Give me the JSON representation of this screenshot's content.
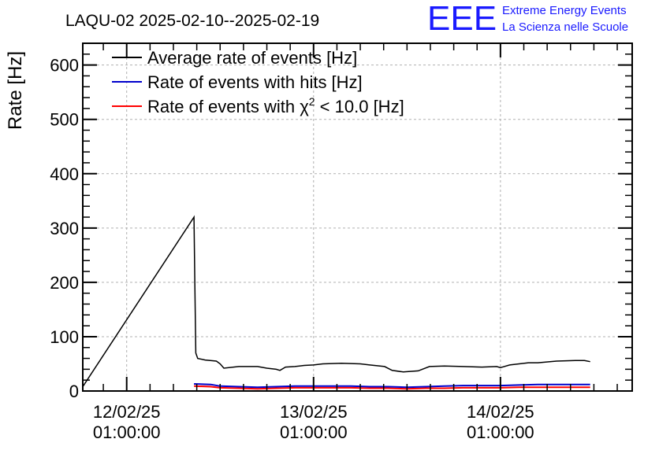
{
  "header": {
    "title": "LAQU-02 2025-02-10--2025-02-19",
    "logo_text": "EEE",
    "logo_line1": "Extreme Energy Events",
    "logo_line2": "La Scienza nelle Scuole",
    "logo_color": "#1a1aff"
  },
  "chart_data": {
    "type": "line",
    "ylabel": "Rate [Hz]",
    "xlabel": "",
    "ylim": [
      0,
      640
    ],
    "yticks": [
      0,
      100,
      200,
      300,
      400,
      500,
      600
    ],
    "xlim": [
      -0.235,
      2.705
    ],
    "xticks": [
      {
        "value": 0,
        "date": "12/02/25",
        "time": "01:00:00"
      },
      {
        "value": 1,
        "date": "13/02/25",
        "time": "01:00:00"
      },
      {
        "value": 2,
        "date": "14/02/25",
        "time": "01:00:00"
      }
    ],
    "grid": true,
    "legend": {
      "placement": "top-left",
      "entries": [
        {
          "label_pre": "Average rate of events [Hz]",
          "label_sup": "",
          "label_post": "",
          "color": "#000000"
        },
        {
          "label_pre": "Rate of events with hits [Hz]",
          "label_sup": "",
          "label_post": "",
          "color": "#0000cc"
        },
        {
          "label_pre": "Rate of events with χ",
          "label_sup": "2",
          "label_post": " < 10.0 [Hz]",
          "color": "#ff0000"
        }
      ]
    },
    "series": [
      {
        "name": "Average rate of events [Hz]",
        "color": "#000000",
        "points": [
          [
            -0.25,
            0
          ],
          [
            0.36,
            320
          ],
          [
            0.365,
            195
          ],
          [
            0.37,
            70
          ],
          [
            0.38,
            60
          ],
          [
            0.42,
            57
          ],
          [
            0.48,
            55
          ],
          [
            0.5,
            50
          ],
          [
            0.52,
            42
          ],
          [
            0.6,
            45
          ],
          [
            0.7,
            45
          ],
          [
            0.75,
            42
          ],
          [
            0.8,
            40
          ],
          [
            0.82,
            38
          ],
          [
            0.85,
            44
          ],
          [
            0.9,
            45
          ],
          [
            0.95,
            47
          ],
          [
            1.0,
            48
          ],
          [
            1.05,
            50
          ],
          [
            1.15,
            51
          ],
          [
            1.25,
            50
          ],
          [
            1.3,
            48
          ],
          [
            1.38,
            45
          ],
          [
            1.42,
            38
          ],
          [
            1.48,
            35
          ],
          [
            1.56,
            37
          ],
          [
            1.62,
            45
          ],
          [
            1.7,
            46
          ],
          [
            1.8,
            45
          ],
          [
            1.9,
            44
          ],
          [
            1.98,
            45
          ],
          [
            2.0,
            43
          ],
          [
            2.05,
            48
          ],
          [
            2.1,
            50
          ],
          [
            2.15,
            52
          ],
          [
            2.2,
            52
          ],
          [
            2.3,
            55
          ],
          [
            2.4,
            56
          ],
          [
            2.45,
            56
          ],
          [
            2.48,
            54
          ]
        ]
      },
      {
        "name": "Rate of events with hits [Hz]",
        "color": "#0000cc",
        "points": [
          [
            0.36,
            13
          ],
          [
            0.45,
            12
          ],
          [
            0.5,
            9
          ],
          [
            0.6,
            8
          ],
          [
            0.7,
            7
          ],
          [
            0.8,
            8
          ],
          [
            0.9,
            9
          ],
          [
            1.0,
            9
          ],
          [
            1.1,
            9
          ],
          [
            1.2,
            9
          ],
          [
            1.3,
            8
          ],
          [
            1.4,
            8
          ],
          [
            1.5,
            7
          ],
          [
            1.6,
            8
          ],
          [
            1.7,
            9
          ],
          [
            1.8,
            10
          ],
          [
            1.9,
            10
          ],
          [
            2.0,
            10
          ],
          [
            2.1,
            11
          ],
          [
            2.2,
            12
          ],
          [
            2.3,
            12
          ],
          [
            2.4,
            12
          ],
          [
            2.48,
            12
          ]
        ]
      },
      {
        "name": "Rate of events with χ2 < 10.0 [Hz]",
        "color": "#ff0000",
        "points": [
          [
            0.36,
            9
          ],
          [
            0.45,
            8
          ],
          [
            0.5,
            6
          ],
          [
            0.6,
            5
          ],
          [
            0.7,
            4
          ],
          [
            0.8,
            5
          ],
          [
            0.9,
            6
          ],
          [
            1.0,
            6
          ],
          [
            1.1,
            6
          ],
          [
            1.2,
            6
          ],
          [
            1.3,
            5
          ],
          [
            1.4,
            5
          ],
          [
            1.5,
            4
          ],
          [
            1.6,
            5
          ],
          [
            1.7,
            5
          ],
          [
            1.8,
            6
          ],
          [
            1.9,
            6
          ],
          [
            2.0,
            6
          ],
          [
            2.1,
            7
          ],
          [
            2.2,
            7
          ],
          [
            2.3,
            7
          ],
          [
            2.4,
            7
          ],
          [
            2.48,
            7
          ]
        ]
      }
    ]
  }
}
